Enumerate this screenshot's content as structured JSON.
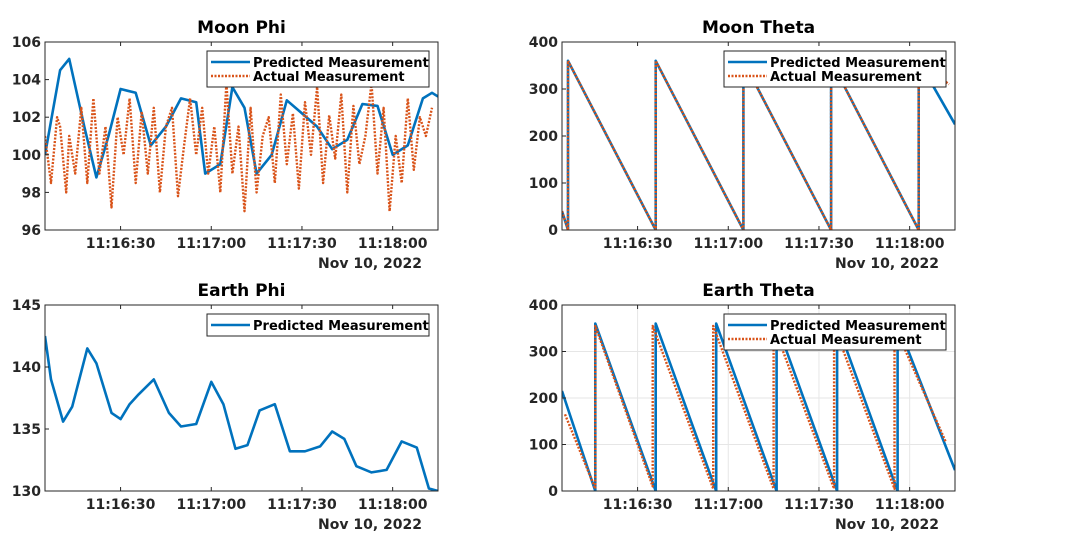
{
  "colors": {
    "predicted": "#0072BD",
    "actual": "#D95319",
    "axis": "#262626",
    "grid": "#e6e6e6"
  },
  "chart_data": [
    {
      "type": "line",
      "title": "Moon Phi",
      "xlabel": "",
      "ylabel": "",
      "date_label": "Nov 10, 2022",
      "x_ticks": [
        "11:16:30",
        "11:17:00",
        "11:17:30",
        "11:18:00"
      ],
      "ylim": [
        96,
        106
      ],
      "y_ticks": [
        96,
        98,
        100,
        102,
        104,
        106
      ],
      "xlim": [
        "11:16:05",
        "11:18:15"
      ],
      "grid": false,
      "legend_position": "top-right",
      "series": [
        {
          "name": "Predicted Measurement",
          "style": "solid",
          "x": [
            "11:16:05",
            "11:16:10",
            "11:16:13",
            "11:16:18",
            "11:16:22",
            "11:16:26",
            "11:16:30",
            "11:16:35",
            "11:16:40",
            "11:16:45",
            "11:16:50",
            "11:16:55",
            "11:16:58",
            "11:17:03",
            "11:17:07",
            "11:17:11",
            "11:17:15",
            "11:17:20",
            "11:17:25",
            "11:17:30",
            "11:17:35",
            "11:17:40",
            "11:17:45",
            "11:17:50",
            "11:17:55",
            "11:18:00",
            "11:18:05",
            "11:18:10",
            "11:18:13",
            "11:18:15"
          ],
          "y": [
            100,
            104.5,
            105.1,
            101.5,
            98.8,
            101,
            103.5,
            103.3,
            100.5,
            101.5,
            103,
            102.8,
            99,
            99.5,
            103.6,
            102.5,
            99,
            100,
            102.9,
            102.2,
            101.5,
            100.3,
            100.8,
            102.7,
            102.6,
            100,
            100.5,
            103,
            103.3,
            103.1
          ]
        },
        {
          "name": "Actual Measurement",
          "style": "dotted",
          "x": [
            "11:16:05",
            "11:16:07",
            "11:16:09",
            "11:16:10",
            "11:16:12",
            "11:16:13",
            "11:16:15",
            "11:16:17",
            "11:16:19",
            "11:16:21",
            "11:16:23",
            "11:16:25",
            "11:16:27",
            "11:16:29",
            "11:16:31",
            "11:16:33",
            "11:16:35",
            "11:16:37",
            "11:16:39",
            "11:16:41",
            "11:16:43",
            "11:16:45",
            "11:16:47",
            "11:16:49",
            "11:16:51",
            "11:16:53",
            "11:16:55",
            "11:16:57",
            "11:16:59",
            "11:17:01",
            "11:17:03",
            "11:17:05",
            "11:17:07",
            "11:17:09",
            "11:17:11",
            "11:17:13",
            "11:17:15",
            "11:17:17",
            "11:17:19",
            "11:17:21",
            "11:17:23",
            "11:17:25",
            "11:17:27",
            "11:17:29",
            "11:17:31",
            "11:17:33",
            "11:17:35",
            "11:17:37",
            "11:17:39",
            "11:17:41",
            "11:17:43",
            "11:17:45",
            "11:17:47",
            "11:17:49",
            "11:17:51",
            "11:17:53",
            "11:17:55",
            "11:17:57",
            "11:17:59",
            "11:18:01",
            "11:18:03",
            "11:18:05",
            "11:18:07",
            "11:18:09",
            "11:18:11",
            "11:18:13"
          ],
          "y": [
            101,
            98.5,
            102,
            101.5,
            98,
            101,
            99,
            102.5,
            98.5,
            103,
            99,
            101.5,
            97.2,
            102,
            100,
            103,
            98.5,
            102.3,
            99,
            102.5,
            98,
            101.5,
            102.5,
            97.8,
            100.5,
            103,
            100,
            102.5,
            99,
            101.5,
            98,
            103.8,
            99,
            101.5,
            97,
            102.5,
            98,
            101,
            102,
            98.5,
            103.2,
            99.5,
            102.2,
            98.2,
            102.8,
            100,
            103.6,
            98.5,
            102.1,
            99.8,
            103.2,
            98,
            102.6,
            99.5,
            101,
            103.8,
            99,
            102.5,
            97,
            101,
            98.5,
            103,
            99.2,
            102,
            101,
            102.5
          ]
        }
      ]
    },
    {
      "type": "line",
      "title": "Moon Theta",
      "xlabel": "",
      "ylabel": "",
      "date_label": "Nov 10, 2022",
      "x_ticks": [
        "11:16:30",
        "11:17:00",
        "11:17:30",
        "11:18:00"
      ],
      "ylim": [
        0,
        400
      ],
      "y_ticks": [
        0,
        100,
        200,
        300,
        400
      ],
      "xlim": [
        "11:16:05",
        "11:18:15"
      ],
      "grid": false,
      "legend_position": "top-right",
      "series": [
        {
          "name": "Predicted Measurement",
          "style": "solid",
          "x": [
            "11:16:05",
            "11:16:07",
            "11:16:07",
            "11:16:36",
            "11:16:36",
            "11:17:05",
            "11:17:05",
            "11:17:34",
            "11:17:34",
            "11:18:03",
            "11:18:03",
            "11:18:15"
          ],
          "y": [
            40,
            0,
            360,
            0,
            360,
            0,
            360,
            0,
            360,
            0,
            360,
            225
          ]
        },
        {
          "name": "Actual Measurement",
          "style": "dotted",
          "x": [
            "11:16:05",
            "11:16:07",
            "11:16:07",
            "11:16:36",
            "11:16:36",
            "11:17:05",
            "11:17:05",
            "11:17:34",
            "11:17:34",
            "11:18:03",
            "11:18:03",
            "11:18:13"
          ],
          "y": [
            40,
            0,
            360,
            0,
            360,
            0,
            360,
            0,
            360,
            0,
            360,
            310
          ]
        }
      ]
    },
    {
      "type": "line",
      "title": "Earth Phi",
      "xlabel": "",
      "ylabel": "",
      "date_label": "Nov 10, 2022",
      "x_ticks": [
        "11:16:30",
        "11:17:00",
        "11:17:30",
        "11:18:00"
      ],
      "ylim": [
        130,
        145
      ],
      "y_ticks": [
        130,
        135,
        140,
        145
      ],
      "xlim": [
        "11:16:05",
        "11:18:15"
      ],
      "grid": false,
      "legend_position": "top-right",
      "series": [
        {
          "name": "Predicted Measurement",
          "style": "solid",
          "x": [
            "11:16:05",
            "11:16:07",
            "11:16:11",
            "11:16:14",
            "11:16:19",
            "11:16:22",
            "11:16:27",
            "11:16:30",
            "11:16:33",
            "11:16:36",
            "11:16:41",
            "11:16:46",
            "11:16:50",
            "11:16:55",
            "11:17:00",
            "11:17:04",
            "11:17:08",
            "11:17:12",
            "11:17:16",
            "11:17:21",
            "11:17:26",
            "11:17:31",
            "11:17:36",
            "11:17:40",
            "11:17:44",
            "11:17:48",
            "11:17:53",
            "11:17:58",
            "11:18:03",
            "11:18:08",
            "11:18:12",
            "11:18:15"
          ],
          "y": [
            142.5,
            139,
            135.6,
            136.8,
            141.5,
            140.3,
            136.3,
            135.8,
            137,
            137.8,
            139,
            136.3,
            135.2,
            135.4,
            138.8,
            137,
            133.4,
            133.7,
            136.5,
            137,
            133.2,
            133.2,
            133.6,
            134.8,
            134.2,
            132,
            131.5,
            131.7,
            134,
            133.5,
            130.2,
            130
          ]
        }
      ]
    },
    {
      "type": "line",
      "title": "Earth Theta",
      "xlabel": "",
      "ylabel": "",
      "date_label": "Nov 10, 2022",
      "x_ticks": [
        "11:16:30",
        "11:17:00",
        "11:17:30",
        "11:18:00"
      ],
      "ylim": [
        0,
        400
      ],
      "y_ticks": [
        0,
        100,
        200,
        300,
        400
      ],
      "xlim": [
        "11:16:05",
        "11:18:15"
      ],
      "grid": true,
      "legend_position": "top-right",
      "series": [
        {
          "name": "Predicted Measurement",
          "style": "solid",
          "x": [
            "11:16:05",
            "11:16:16",
            "11:16:16",
            "11:16:36",
            "11:16:36",
            "11:16:56",
            "11:16:56",
            "11:17:16",
            "11:17:16",
            "11:17:36",
            "11:17:36",
            "11:17:56",
            "11:17:56",
            "11:18:15"
          ],
          "y": [
            215,
            0,
            360,
            0,
            360,
            0,
            360,
            0,
            360,
            0,
            360,
            0,
            360,
            45
          ]
        },
        {
          "name": "Actual Measurement",
          "style": "dotted",
          "x": [
            "11:16:06",
            "11:16:16",
            "11:16:16",
            "11:16:35",
            "11:16:35",
            "11:16:55",
            "11:16:55",
            "11:17:15",
            "11:17:15",
            "11:17:35",
            "11:17:35",
            "11:17:55",
            "11:17:55",
            "11:18:12"
          ],
          "y": [
            165,
            5,
            355,
            10,
            355,
            5,
            355,
            5,
            355,
            5,
            355,
            5,
            355,
            105
          ]
        }
      ]
    }
  ]
}
